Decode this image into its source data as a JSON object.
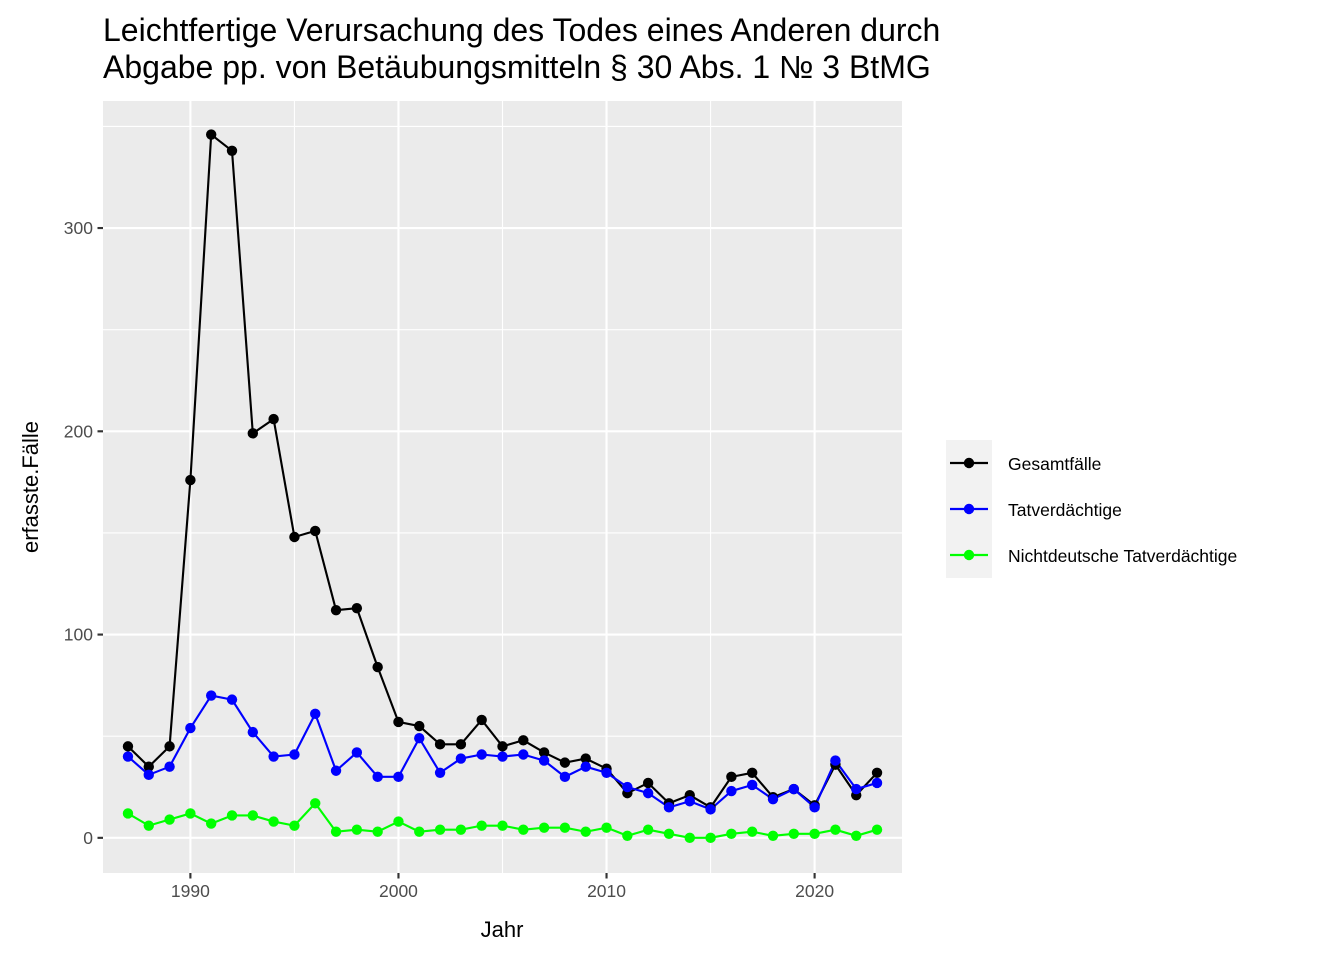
{
  "chart_data": {
    "type": "line",
    "title_lines": [
      "Leichtfertige Verursachung des Todes eines Anderen durch",
      "Abgabe pp. von Betäubungsmitteln § 30 Abs. 1 № 3 BtMG"
    ],
    "xlabel": "Jahr",
    "ylabel": "erfasste.Fälle",
    "xlim": [
      1985.8,
      2024.2
    ],
    "ylim": [
      -17.3,
      362.5
    ],
    "x_ticks": [
      1990,
      2000,
      2010,
      2020
    ],
    "x_minor_ticks": [
      1985,
      1995,
      2005,
      2015
    ],
    "y_ticks": [
      0,
      100,
      200,
      300
    ],
    "y_minor_ticks": [
      50,
      150,
      250,
      350
    ],
    "grid": true,
    "legend_position": "right",
    "x": [
      1987,
      1988,
      1989,
      1990,
      1991,
      1992,
      1993,
      1994,
      1995,
      1996,
      1997,
      1998,
      1999,
      2000,
      2001,
      2002,
      2003,
      2004,
      2005,
      2006,
      2007,
      2008,
      2009,
      2010,
      2011,
      2012,
      2013,
      2014,
      2015,
      2016,
      2017,
      2018,
      2019,
      2020,
      2021,
      2022,
      2023
    ],
    "series": [
      {
        "name": "Gesamtfälle",
        "color": "#000000",
        "values": [
          45,
          35,
          45,
          176,
          346,
          338,
          199,
          206,
          148,
          151,
          112,
          113,
          84,
          57,
          55,
          46,
          46,
          58,
          45,
          48,
          42,
          37,
          39,
          34,
          22,
          27,
          17,
          21,
          15,
          30,
          32,
          20,
          24,
          16,
          36,
          21,
          32
        ]
      },
      {
        "name": "Tatverdächtige",
        "color": "#0000ff",
        "values": [
          40,
          31,
          35,
          54,
          70,
          68,
          52,
          40,
          41,
          61,
          33,
          42,
          30,
          30,
          49,
          32,
          39,
          41,
          40,
          41,
          38,
          30,
          35,
          32,
          25,
          22,
          15,
          18,
          14,
          23,
          26,
          19,
          24,
          15,
          38,
          24,
          27
        ]
      },
      {
        "name": "Nichtdeutsche Tatverdächtige",
        "color": "#00ff00",
        "values": [
          12,
          6,
          9,
          12,
          7,
          11,
          11,
          8,
          6,
          17,
          3,
          4,
          3,
          8,
          3,
          4,
          4,
          6,
          6,
          4,
          5,
          5,
          3,
          5,
          1,
          4,
          2,
          0,
          0,
          2,
          3,
          1,
          2,
          2,
          4,
          1,
          4
        ]
      }
    ]
  }
}
